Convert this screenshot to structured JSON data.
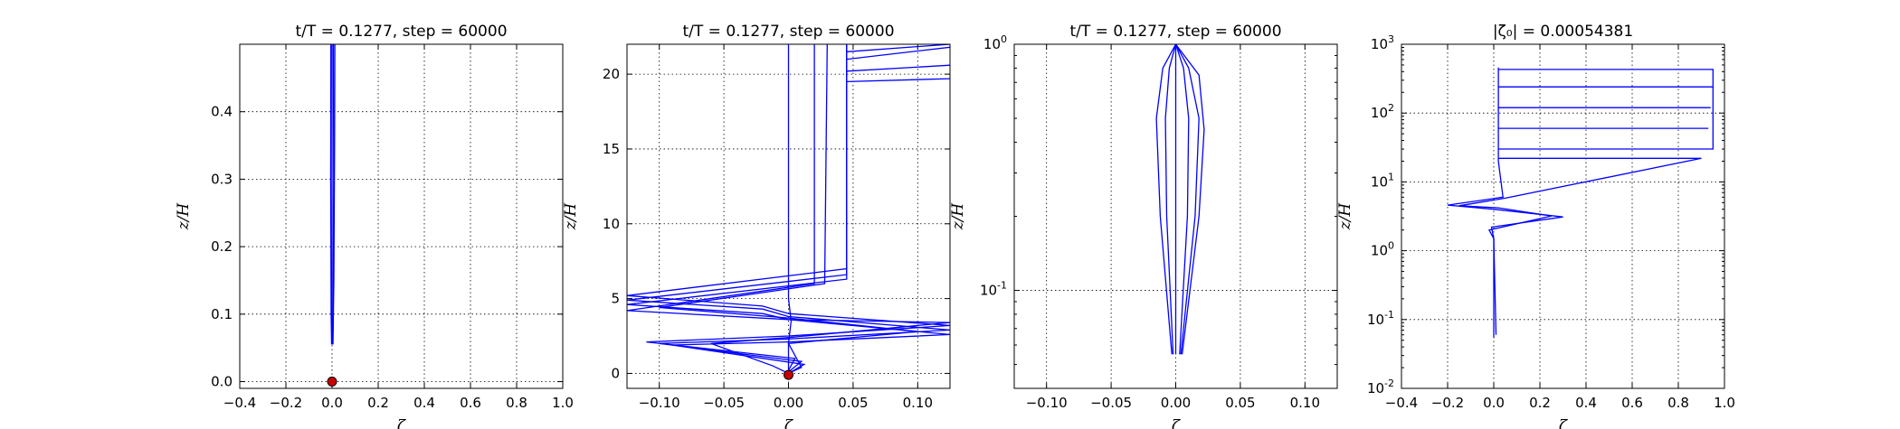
{
  "chart_data": [
    {
      "type": "line",
      "title": "t/T = 0.1277, step = 60000",
      "xlabel": "ζ",
      "ylabel": "z/H",
      "xlim": [
        -0.4,
        1.0
      ],
      "ylim": [
        -0.01,
        0.5
      ],
      "x_scale": "linear",
      "y_scale": "linear",
      "grid": true,
      "line_color": "#0000ff",
      "marker_color": "#cc0000",
      "xticks": [
        "−0.4",
        "−0.2",
        "0.0",
        "0.2",
        "0.4",
        "0.6",
        "0.8",
        "1.0"
      ],
      "yticks": [
        "0.0",
        "0.1",
        "0.2",
        "0.3",
        "0.4"
      ],
      "marker": {
        "x": 0.0,
        "y": 0.0
      },
      "series": [
        {
          "points": [
            [
              -0.005,
              0.5
            ],
            [
              -0.006,
              0.3
            ],
            [
              -0.004,
              0.1
            ],
            [
              -0.002,
              0.055
            ]
          ]
        },
        {
          "points": [
            [
              0.0,
              0.5
            ],
            [
              0.0,
              0.3
            ],
            [
              0.0,
              0.1
            ],
            [
              0.0,
              0.055
            ]
          ]
        },
        {
          "points": [
            [
              0.006,
              0.5
            ],
            [
              0.007,
              0.3
            ],
            [
              0.005,
              0.1
            ],
            [
              0.003,
              0.055
            ]
          ]
        },
        {
          "points": [
            [
              0.012,
              0.5
            ],
            [
              0.011,
              0.35
            ],
            [
              0.008,
              0.15
            ],
            [
              0.004,
              0.055
            ]
          ]
        }
      ]
    },
    {
      "type": "line",
      "title": "t/T = 0.1277, step = 60000",
      "xlabel": "ζ",
      "ylabel": "z/H",
      "xlim": [
        -0.125,
        0.125
      ],
      "ylim": [
        -1.0,
        22.0
      ],
      "x_scale": "linear",
      "y_scale": "linear",
      "grid": true,
      "line_color": "#0000ff",
      "marker_color": "#cc0000",
      "xticks": [
        "−0.10",
        "−0.05",
        "0.00",
        "0.05",
        "0.10"
      ],
      "yticks": [
        "0",
        "5",
        "10",
        "15",
        "20"
      ],
      "marker": {
        "x": 0.0,
        "y": -0.1
      },
      "series": [
        {
          "points": [
            [
              0.0,
              22
            ],
            [
              0.0,
              6.5
            ],
            [
              0.0,
              5.0
            ],
            [
              0.002,
              3.5
            ],
            [
              0.0,
              2.0
            ],
            [
              0.0,
              0.5
            ],
            [
              0.0,
              0.0
            ]
          ]
        },
        {
          "points": [
            [
              0.045,
              22
            ],
            [
              0.045,
              7.0
            ],
            [
              -0.125,
              5.2
            ],
            [
              -0.02,
              4.5
            ],
            [
              0.0,
              4.0
            ],
            [
              0.125,
              3.2
            ],
            [
              0.0,
              2.5
            ],
            [
              -0.11,
              2.1
            ],
            [
              0.005,
              1.0
            ],
            [
              0.0,
              0.2
            ]
          ]
        },
        {
          "points": [
            [
              0.045,
              22
            ],
            [
              0.045,
              6.6
            ],
            [
              -0.125,
              4.9
            ],
            [
              -0.02,
              4.3
            ],
            [
              0.0,
              3.8
            ],
            [
              0.125,
              2.9
            ],
            [
              0.0,
              2.3
            ],
            [
              -0.1,
              2.0
            ],
            [
              0.01,
              0.8
            ],
            [
              0.0,
              0.1
            ]
          ]
        },
        {
          "points": [
            [
              0.045,
              22
            ],
            [
              0.045,
              6.3
            ],
            [
              -0.125,
              4.6
            ],
            [
              -0.02,
              4.0
            ],
            [
              0.0,
              3.6
            ],
            [
              0.125,
              2.6
            ],
            [
              0.0,
              2.1
            ],
            [
              -0.09,
              1.9
            ],
            [
              0.012,
              0.6
            ],
            [
              0.0,
              0.0
            ]
          ]
        },
        {
          "points": [
            [
              0.03,
              22
            ],
            [
              0.028,
              6.0
            ],
            [
              -0.1,
              4.4
            ],
            [
              0.0,
              3.7
            ],
            [
              0.1,
              2.8
            ],
            [
              0.0,
              2.0
            ],
            [
              0.01,
              0.4
            ],
            [
              0.0,
              0.0
            ]
          ]
        },
        {
          "points": [
            [
              0.02,
              22
            ],
            [
              0.02,
              6.0
            ],
            [
              -0.125,
              4.2
            ],
            [
              0.0,
              3.6
            ],
            [
              0.125,
              3.4
            ],
            [
              0.0,
              2.4
            ],
            [
              -0.06,
              2.0
            ],
            [
              -0.012,
              0.5
            ],
            [
              0.0,
              0.0
            ]
          ]
        },
        {
          "points": [
            [
              0.045,
              21.5
            ],
            [
              0.125,
              22.0
            ]
          ]
        },
        {
          "points": [
            [
              0.045,
              21.0
            ],
            [
              0.125,
              21.8
            ]
          ]
        },
        {
          "points": [
            [
              0.045,
              20.2
            ],
            [
              0.125,
              20.6
            ]
          ]
        },
        {
          "points": [
            [
              0.045,
              19.5
            ],
            [
              0.125,
              19.7
            ]
          ]
        }
      ]
    },
    {
      "type": "line",
      "title": "t/T = 0.1277, step = 60000",
      "xlabel": "ζ",
      "ylabel": "z/H",
      "xlim": [
        -0.125,
        0.125
      ],
      "ylim": [
        0.04,
        1.0
      ],
      "x_scale": "linear",
      "y_scale": "log",
      "grid": true,
      "line_color": "#0000ff",
      "xticks": [
        "−0.10",
        "−0.05",
        "0.00",
        "0.05",
        "0.10"
      ],
      "yticks": [
        {
          "base": "10",
          "exp": "-1",
          "value": 0.1
        },
        {
          "base": "10",
          "exp": "0",
          "value": 1.0
        }
      ],
      "series": [
        {
          "points": [
            [
              0.0,
              1.0
            ],
            [
              -0.01,
              0.8
            ],
            [
              -0.015,
              0.5
            ],
            [
              -0.012,
              0.2
            ],
            [
              -0.003,
              0.055
            ]
          ]
        },
        {
          "points": [
            [
              0.0,
              1.0
            ],
            [
              0.01,
              0.8
            ],
            [
              0.018,
              0.5
            ],
            [
              0.015,
              0.2
            ],
            [
              0.004,
              0.055
            ]
          ]
        },
        {
          "points": [
            [
              0.0,
              1.0
            ],
            [
              -0.005,
              0.8
            ],
            [
              -0.008,
              0.5
            ],
            [
              -0.007,
              0.2
            ],
            [
              -0.002,
              0.055
            ]
          ]
        },
        {
          "points": [
            [
              0.0,
              1.0
            ],
            [
              0.006,
              0.8
            ],
            [
              0.01,
              0.5
            ],
            [
              0.009,
              0.2
            ],
            [
              0.003,
              0.055
            ]
          ]
        },
        {
          "points": [
            [
              0.0,
              1.0
            ],
            [
              0.018,
              0.75
            ],
            [
              0.022,
              0.45
            ],
            [
              0.018,
              0.2
            ],
            [
              0.005,
              0.055
            ]
          ]
        },
        {
          "points": [
            [
              0.0,
              1.0
            ],
            [
              0.0,
              0.5
            ],
            [
              0.0,
              0.055
            ]
          ]
        }
      ]
    },
    {
      "type": "line",
      "title": "|ζ₀| = 0.00054381",
      "xlabel": "ζ",
      "ylabel": "z/H",
      "xlim": [
        -0.4,
        1.0
      ],
      "ylim": [
        0.01,
        1000
      ],
      "x_scale": "linear",
      "y_scale": "log",
      "grid": true,
      "line_color": "#0000ff",
      "xticks": [
        "−0.4",
        "−0.2",
        "0.0",
        "0.2",
        "0.4",
        "0.6",
        "0.8",
        "1.0"
      ],
      "yticks": [
        {
          "base": "10",
          "exp": "-2",
          "value": 0.01
        },
        {
          "base": "10",
          "exp": "-1",
          "value": 0.1
        },
        {
          "base": "10",
          "exp": "0",
          "value": 1
        },
        {
          "base": "10",
          "exp": "1",
          "value": 10
        },
        {
          "base": "10",
          "exp": "2",
          "value": 100
        },
        {
          "base": "10",
          "exp": "3",
          "value": 1000
        }
      ],
      "series": [
        {
          "points": [
            [
              0.0,
              0.055
            ],
            [
              0.0,
              1.5
            ],
            [
              -0.01,
              2.2
            ],
            [
              0.3,
              3.1
            ],
            [
              0.0,
              4.0
            ],
            [
              -0.2,
              4.6
            ],
            [
              0.04,
              6.0
            ],
            [
              0.02,
              20
            ],
            [
              0.02,
              460
            ]
          ]
        },
        {
          "points": [
            [
              0.01,
              0.06
            ],
            [
              0.0,
              1.5
            ],
            [
              -0.02,
              2.0
            ],
            [
              0.25,
              3.2
            ],
            [
              0.02,
              4.2
            ],
            [
              -0.15,
              4.5
            ],
            [
              0.05,
              5.8
            ],
            [
              0.9,
              22
            ],
            [
              0.02,
              22
            ]
          ]
        },
        {
          "points": [
            [
              0.02,
              30
            ],
            [
              0.95,
              30
            ],
            [
              0.95,
              430
            ],
            [
              0.02,
              430
            ]
          ]
        },
        {
          "points": [
            [
              0.02,
              60
            ],
            [
              0.93,
              60
            ]
          ]
        },
        {
          "points": [
            [
              0.02,
              120
            ],
            [
              0.94,
              120
            ]
          ]
        },
        {
          "points": [
            [
              0.02,
              240
            ],
            [
              0.95,
              240
            ]
          ]
        }
      ]
    }
  ]
}
